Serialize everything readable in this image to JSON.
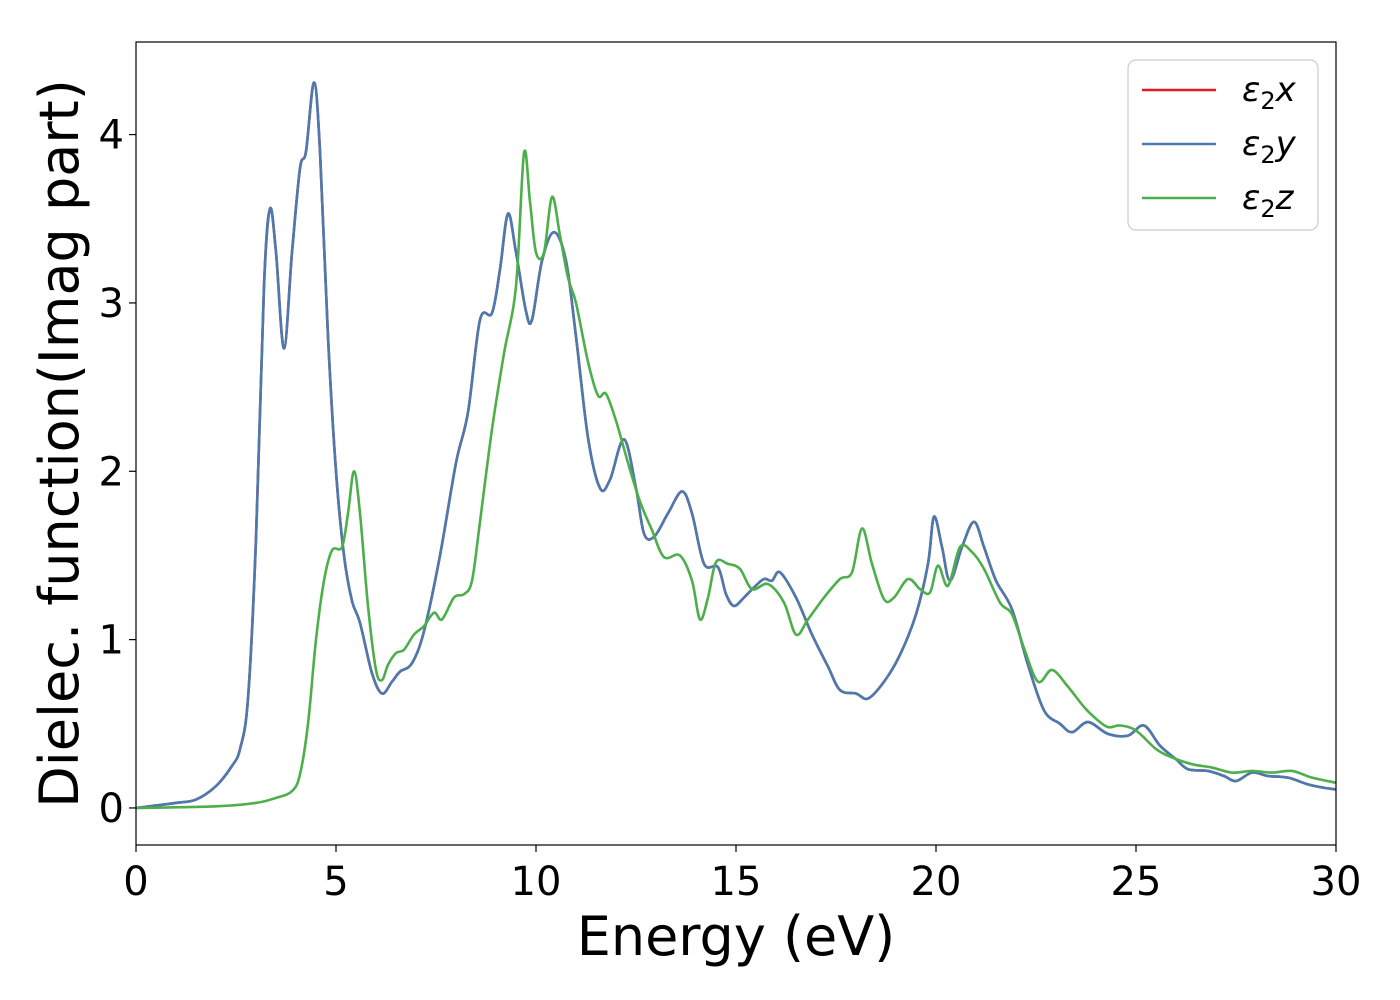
{
  "chart_data": {
    "type": "line",
    "xlabel": "Energy (eV)",
    "ylabel": "Dielec. function(Imag part)",
    "xlim": [
      0,
      30
    ],
    "ylim": [
      -0.22,
      4.55
    ],
    "xticks": [
      0,
      5,
      10,
      15,
      20,
      25,
      30
    ],
    "yticks": [
      0,
      1,
      2,
      3,
      4
    ],
    "legend_position": "top-right",
    "series": [
      {
        "name": "ε₂x",
        "legend_symbol": "ε",
        "legend_subscript": "2",
        "legend_var": "x",
        "color": "#e41a1c",
        "points": [
          [
            0,
            0
          ],
          [
            1,
            0.03
          ],
          [
            1.5,
            0.05
          ],
          [
            2,
            0.13
          ],
          [
            2.4,
            0.25
          ],
          [
            2.6,
            0.35
          ],
          [
            2.8,
            0.65
          ],
          [
            3.0,
            1.6
          ],
          [
            3.2,
            3.1
          ],
          [
            3.35,
            3.56
          ],
          [
            3.5,
            3.3
          ],
          [
            3.7,
            2.73
          ],
          [
            3.9,
            3.3
          ],
          [
            4.1,
            3.8
          ],
          [
            4.25,
            3.9
          ],
          [
            4.45,
            4.31
          ],
          [
            4.6,
            3.9
          ],
          [
            4.8,
            2.8
          ],
          [
            5.0,
            2.0
          ],
          [
            5.2,
            1.5
          ],
          [
            5.4,
            1.23
          ],
          [
            5.6,
            1.1
          ],
          [
            5.9,
            0.8
          ],
          [
            6.15,
            0.68
          ],
          [
            6.4,
            0.75
          ],
          [
            6.6,
            0.81
          ],
          [
            6.9,
            0.86
          ],
          [
            7.2,
            1.05
          ],
          [
            7.6,
            1.5
          ],
          [
            8.0,
            2.05
          ],
          [
            8.3,
            2.35
          ],
          [
            8.6,
            2.9
          ],
          [
            8.9,
            2.94
          ],
          [
            9.1,
            3.2
          ],
          [
            9.3,
            3.53
          ],
          [
            9.5,
            3.3
          ],
          [
            9.75,
            2.95
          ],
          [
            9.9,
            2.9
          ],
          [
            10.15,
            3.25
          ],
          [
            10.45,
            3.42
          ],
          [
            10.75,
            3.25
          ],
          [
            11.0,
            2.8
          ],
          [
            11.3,
            2.2
          ],
          [
            11.6,
            1.9
          ],
          [
            11.85,
            1.95
          ],
          [
            12.2,
            2.19
          ],
          [
            12.5,
            1.9
          ],
          [
            12.7,
            1.63
          ],
          [
            12.95,
            1.61
          ],
          [
            13.3,
            1.75
          ],
          [
            13.65,
            1.88
          ],
          [
            13.9,
            1.75
          ],
          [
            14.2,
            1.45
          ],
          [
            14.55,
            1.43
          ],
          [
            14.75,
            1.27
          ],
          [
            14.95,
            1.2
          ],
          [
            15.2,
            1.25
          ],
          [
            15.45,
            1.31
          ],
          [
            15.7,
            1.36
          ],
          [
            15.9,
            1.35
          ],
          [
            16.1,
            1.4
          ],
          [
            16.5,
            1.25
          ],
          [
            16.9,
            1.03
          ],
          [
            17.3,
            0.84
          ],
          [
            17.6,
            0.7
          ],
          [
            18.0,
            0.68
          ],
          [
            18.3,
            0.65
          ],
          [
            18.7,
            0.75
          ],
          [
            19.1,
            0.91
          ],
          [
            19.5,
            1.15
          ],
          [
            19.8,
            1.45
          ],
          [
            19.95,
            1.73
          ],
          [
            20.15,
            1.55
          ],
          [
            20.35,
            1.35
          ],
          [
            20.65,
            1.55
          ],
          [
            20.95,
            1.7
          ],
          [
            21.2,
            1.55
          ],
          [
            21.5,
            1.35
          ],
          [
            21.9,
            1.18
          ],
          [
            22.3,
            0.85
          ],
          [
            22.7,
            0.58
          ],
          [
            23.1,
            0.5
          ],
          [
            23.4,
            0.45
          ],
          [
            23.8,
            0.51
          ],
          [
            24.3,
            0.44
          ],
          [
            24.8,
            0.43
          ],
          [
            25.2,
            0.49
          ],
          [
            25.6,
            0.37
          ],
          [
            26.0,
            0.29
          ],
          [
            26.3,
            0.23
          ],
          [
            26.8,
            0.22
          ],
          [
            27.2,
            0.19
          ],
          [
            27.5,
            0.16
          ],
          [
            27.9,
            0.21
          ],
          [
            28.3,
            0.19
          ],
          [
            28.8,
            0.18
          ],
          [
            29.3,
            0.14
          ],
          [
            29.7,
            0.12
          ],
          [
            30.0,
            0.11
          ]
        ]
      },
      {
        "name": "ε₂y",
        "legend_symbol": "ε",
        "legend_subscript": "2",
        "legend_var": "y",
        "color": "#4a7bb0",
        "points": [
          [
            0,
            0
          ],
          [
            1,
            0.03
          ],
          [
            1.5,
            0.05
          ],
          [
            2,
            0.13
          ],
          [
            2.4,
            0.25
          ],
          [
            2.6,
            0.35
          ],
          [
            2.8,
            0.65
          ],
          [
            3.0,
            1.6
          ],
          [
            3.2,
            3.1
          ],
          [
            3.35,
            3.56
          ],
          [
            3.5,
            3.3
          ],
          [
            3.7,
            2.73
          ],
          [
            3.9,
            3.3
          ],
          [
            4.1,
            3.8
          ],
          [
            4.25,
            3.9
          ],
          [
            4.45,
            4.31
          ],
          [
            4.6,
            3.9
          ],
          [
            4.8,
            2.8
          ],
          [
            5.0,
            2.0
          ],
          [
            5.2,
            1.5
          ],
          [
            5.4,
            1.23
          ],
          [
            5.6,
            1.1
          ],
          [
            5.9,
            0.8
          ],
          [
            6.15,
            0.68
          ],
          [
            6.4,
            0.75
          ],
          [
            6.6,
            0.81
          ],
          [
            6.9,
            0.86
          ],
          [
            7.2,
            1.05
          ],
          [
            7.6,
            1.5
          ],
          [
            8.0,
            2.05
          ],
          [
            8.3,
            2.35
          ],
          [
            8.6,
            2.9
          ],
          [
            8.9,
            2.94
          ],
          [
            9.1,
            3.2
          ],
          [
            9.3,
            3.53
          ],
          [
            9.5,
            3.3
          ],
          [
            9.75,
            2.95
          ],
          [
            9.9,
            2.9
          ],
          [
            10.15,
            3.25
          ],
          [
            10.45,
            3.42
          ],
          [
            10.75,
            3.25
          ],
          [
            11.0,
            2.8
          ],
          [
            11.3,
            2.2
          ],
          [
            11.6,
            1.9
          ],
          [
            11.85,
            1.95
          ],
          [
            12.2,
            2.19
          ],
          [
            12.5,
            1.9
          ],
          [
            12.7,
            1.63
          ],
          [
            12.95,
            1.61
          ],
          [
            13.3,
            1.75
          ],
          [
            13.65,
            1.88
          ],
          [
            13.9,
            1.75
          ],
          [
            14.2,
            1.45
          ],
          [
            14.55,
            1.43
          ],
          [
            14.75,
            1.27
          ],
          [
            14.95,
            1.2
          ],
          [
            15.2,
            1.25
          ],
          [
            15.45,
            1.31
          ],
          [
            15.7,
            1.36
          ],
          [
            15.9,
            1.35
          ],
          [
            16.1,
            1.4
          ],
          [
            16.5,
            1.25
          ],
          [
            16.9,
            1.03
          ],
          [
            17.3,
            0.84
          ],
          [
            17.6,
            0.7
          ],
          [
            18.0,
            0.68
          ],
          [
            18.3,
            0.65
          ],
          [
            18.7,
            0.75
          ],
          [
            19.1,
            0.91
          ],
          [
            19.5,
            1.15
          ],
          [
            19.8,
            1.45
          ],
          [
            19.95,
            1.73
          ],
          [
            20.15,
            1.55
          ],
          [
            20.35,
            1.35
          ],
          [
            20.65,
            1.55
          ],
          [
            20.95,
            1.7
          ],
          [
            21.2,
            1.55
          ],
          [
            21.5,
            1.35
          ],
          [
            21.9,
            1.18
          ],
          [
            22.3,
            0.85
          ],
          [
            22.7,
            0.58
          ],
          [
            23.1,
            0.5
          ],
          [
            23.4,
            0.45
          ],
          [
            23.8,
            0.51
          ],
          [
            24.3,
            0.44
          ],
          [
            24.8,
            0.43
          ],
          [
            25.2,
            0.49
          ],
          [
            25.6,
            0.37
          ],
          [
            26.0,
            0.29
          ],
          [
            26.3,
            0.23
          ],
          [
            26.8,
            0.22
          ],
          [
            27.2,
            0.19
          ],
          [
            27.5,
            0.16
          ],
          [
            27.9,
            0.21
          ],
          [
            28.3,
            0.19
          ],
          [
            28.8,
            0.18
          ],
          [
            29.3,
            0.14
          ],
          [
            29.7,
            0.12
          ],
          [
            30.0,
            0.11
          ]
        ]
      },
      {
        "name": "ε₂z",
        "legend_symbol": "ε",
        "legend_subscript": "2",
        "legend_var": "z",
        "color": "#4daf4a",
        "points": [
          [
            0,
            0
          ],
          [
            2,
            0.01
          ],
          [
            3,
            0.03
          ],
          [
            3.5,
            0.06
          ],
          [
            3.9,
            0.1
          ],
          [
            4.1,
            0.2
          ],
          [
            4.3,
            0.5
          ],
          [
            4.5,
            1.0
          ],
          [
            4.7,
            1.35
          ],
          [
            4.9,
            1.53
          ],
          [
            5.15,
            1.55
          ],
          [
            5.3,
            1.75
          ],
          [
            5.45,
            2.0
          ],
          [
            5.6,
            1.75
          ],
          [
            5.8,
            1.2
          ],
          [
            6.0,
            0.82
          ],
          [
            6.15,
            0.76
          ],
          [
            6.3,
            0.85
          ],
          [
            6.5,
            0.92
          ],
          [
            6.7,
            0.94
          ],
          [
            6.95,
            1.03
          ],
          [
            7.2,
            1.08
          ],
          [
            7.45,
            1.16
          ],
          [
            7.65,
            1.12
          ],
          [
            7.95,
            1.25
          ],
          [
            8.2,
            1.27
          ],
          [
            8.4,
            1.35
          ],
          [
            8.6,
            1.7
          ],
          [
            8.9,
            2.25
          ],
          [
            9.2,
            2.7
          ],
          [
            9.5,
            3.1
          ],
          [
            9.7,
            3.89
          ],
          [
            9.85,
            3.6
          ],
          [
            10.0,
            3.3
          ],
          [
            10.2,
            3.3
          ],
          [
            10.4,
            3.63
          ],
          [
            10.6,
            3.4
          ],
          [
            10.8,
            3.15
          ],
          [
            11.0,
            3.0
          ],
          [
            11.3,
            2.65
          ],
          [
            11.55,
            2.45
          ],
          [
            11.75,
            2.46
          ],
          [
            12.0,
            2.3
          ],
          [
            12.3,
            2.05
          ],
          [
            12.6,
            1.82
          ],
          [
            12.9,
            1.65
          ],
          [
            13.2,
            1.49
          ],
          [
            13.6,
            1.5
          ],
          [
            13.9,
            1.35
          ],
          [
            14.1,
            1.12
          ],
          [
            14.3,
            1.25
          ],
          [
            14.5,
            1.46
          ],
          [
            14.8,
            1.45
          ],
          [
            15.1,
            1.42
          ],
          [
            15.4,
            1.3
          ],
          [
            15.8,
            1.33
          ],
          [
            16.2,
            1.22
          ],
          [
            16.5,
            1.03
          ],
          [
            16.8,
            1.12
          ],
          [
            17.2,
            1.25
          ],
          [
            17.6,
            1.36
          ],
          [
            17.9,
            1.4
          ],
          [
            18.15,
            1.66
          ],
          [
            18.4,
            1.45
          ],
          [
            18.7,
            1.24
          ],
          [
            18.95,
            1.25
          ],
          [
            19.3,
            1.36
          ],
          [
            19.6,
            1.3
          ],
          [
            19.85,
            1.28
          ],
          [
            20.05,
            1.44
          ],
          [
            20.3,
            1.32
          ],
          [
            20.6,
            1.55
          ],
          [
            20.9,
            1.52
          ],
          [
            21.2,
            1.42
          ],
          [
            21.6,
            1.22
          ],
          [
            21.9,
            1.15
          ],
          [
            22.2,
            0.95
          ],
          [
            22.55,
            0.75
          ],
          [
            22.9,
            0.82
          ],
          [
            23.3,
            0.72
          ],
          [
            23.7,
            0.6
          ],
          [
            24.0,
            0.53
          ],
          [
            24.3,
            0.48
          ],
          [
            24.6,
            0.49
          ],
          [
            25.0,
            0.46
          ],
          [
            25.5,
            0.35
          ],
          [
            25.9,
            0.3
          ],
          [
            26.4,
            0.26
          ],
          [
            26.9,
            0.24
          ],
          [
            27.4,
            0.21
          ],
          [
            27.9,
            0.22
          ],
          [
            28.4,
            0.21
          ],
          [
            28.9,
            0.22
          ],
          [
            29.4,
            0.18
          ],
          [
            30.0,
            0.15
          ]
        ]
      }
    ]
  }
}
